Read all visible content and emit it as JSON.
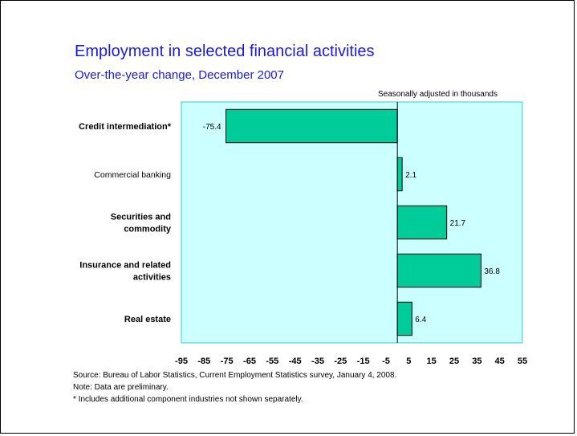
{
  "chart_data": {
    "type": "bar",
    "orientation": "horizontal",
    "title": "Employment in selected financial activities",
    "subtitle": "Over-the-year change, December 2007",
    "unit_note": "Seasonally adjusted in thousands",
    "categories": [
      {
        "lines": [
          "Credit intermediation*"
        ],
        "bold": true
      },
      {
        "lines": [
          "Commercial banking"
        ],
        "bold": false
      },
      {
        "lines": [
          "Securities and",
          "commodity"
        ],
        "bold": true
      },
      {
        "lines": [
          "Insurance and related",
          "activities"
        ],
        "bold": true
      },
      {
        "lines": [
          "Real estate"
        ],
        "bold": true
      }
    ],
    "values": [
      -75.4,
      2.1,
      21.7,
      36.8,
      6.4
    ],
    "value_labels": [
      "-75.4",
      "2.1",
      "21.7",
      "36.8",
      "6.4"
    ],
    "xlim": [
      -95,
      55
    ],
    "xticks": [
      -95,
      -85,
      -75,
      -65,
      -55,
      -45,
      -35,
      -25,
      -15,
      -5,
      5,
      15,
      25,
      35,
      45,
      55
    ],
    "xtick_labels": [
      "-95",
      "-85",
      "-75",
      "-65",
      "-55",
      "-45",
      "-35",
      "-25",
      "-15",
      "-5",
      "5",
      "15",
      "25",
      "35",
      "45",
      "55"
    ],
    "grid": false,
    "bar_color": "#00cc99",
    "plot_background": "#ccffff",
    "plot_border_color": "#33cccc"
  },
  "notes": {
    "source": "Source:  Bureau of Labor Statistics, Current Employment Statistics survey, January 4, 2008.",
    "note": "Note:  Data are preliminary.",
    "footnote": "* Includes additional component industries not shown separately."
  }
}
